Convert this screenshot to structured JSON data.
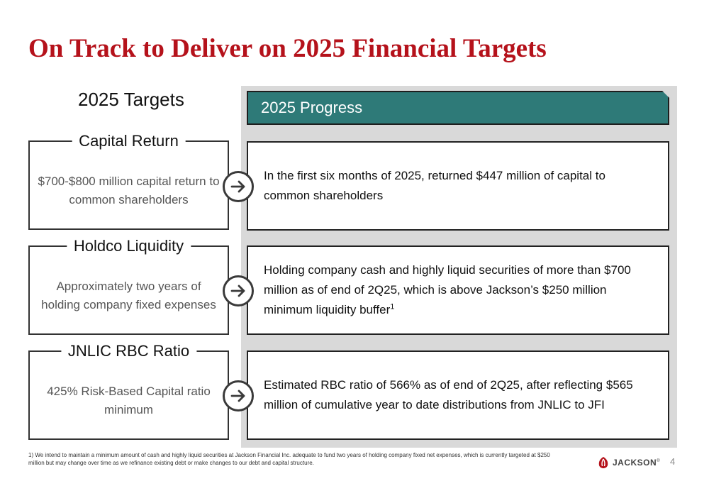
{
  "title": "On Track to Deliver on 2025 Financial Targets",
  "targets_heading": "2025 Targets",
  "progress_heading": "2025 Progress",
  "rows": [
    {
      "target_label": "Capital Return",
      "target_text": "$700-$800 million capital return to common shareholders",
      "progress_text": "In the first six months of 2025, returned $447 million of capital to common shareholders",
      "progress_sup": ""
    },
    {
      "target_label": "Holdco Liquidity",
      "target_text": "Approximately two years of holding company fixed expenses",
      "progress_text": "Holding company cash and highly liquid securities of more than $700 million as of end of 2Q25, which is above Jackson’s $250 million minimum liquidity buffer",
      "progress_sup": "1"
    },
    {
      "target_label": "JNLIC RBC Ratio",
      "target_text": "425% Risk-Based Capital ratio minimum",
      "progress_text": "Estimated RBC ratio of 566% as of end of 2Q25, after reflecting $565 million of cumulative year to date distributions from JNLIC to JFI",
      "progress_sup": ""
    }
  ],
  "footnote": "1) We intend to maintain a minimum amount of cash and highly liquid securities at Jackson Financial Inc. adequate to fund two years of holding company fixed net expenses, which is currently targeted at $250 million but may change over time as we refinance existing debt or make changes to our debt and capital structure.",
  "logo_text": "JACKSON",
  "logo_mark": "®",
  "page_number": "4",
  "colors": {
    "title": "#b5121b",
    "banner": "#2e7a78",
    "panel": "#d9d9d9",
    "logo_icon": "#b5121b"
  },
  "icons": {
    "arrow": "arrow-right-circle-icon",
    "logo": "jackson-logo-icon"
  }
}
